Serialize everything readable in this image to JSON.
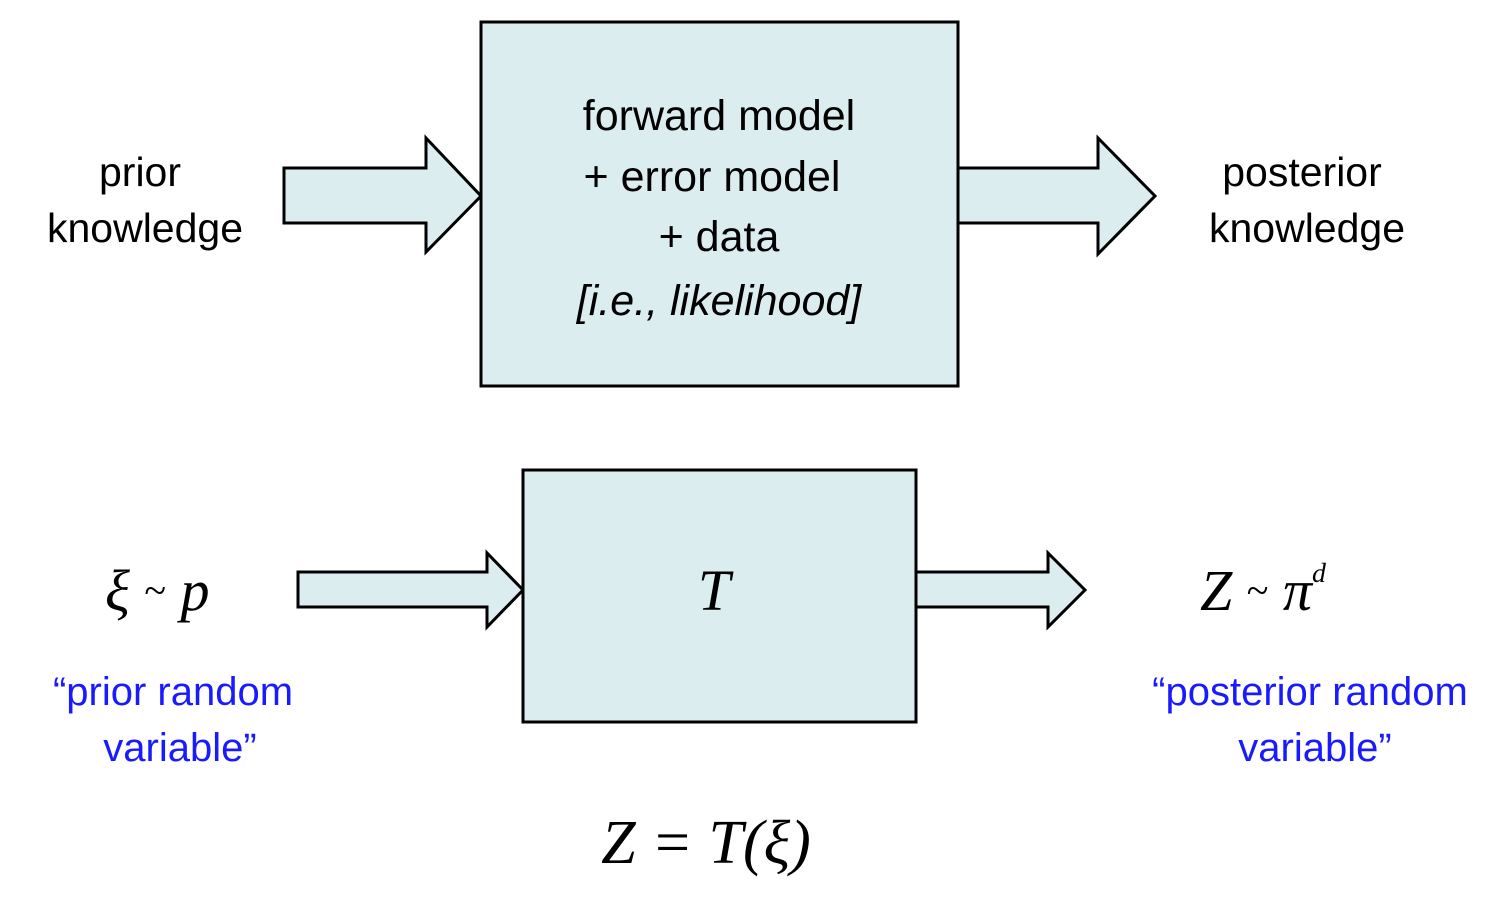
{
  "top_row": {
    "left_label_line1": "prior",
    "left_label_line2": "knowledge",
    "box_line1": "forward model",
    "box_line2": "+ error model",
    "box_line3": "+ data",
    "box_line4": "[i.e., likelihood]",
    "right_label_line1": "posterior",
    "right_label_line2": "knowledge"
  },
  "bottom_row": {
    "left_math_var": "ξ",
    "left_math_rel": "~",
    "left_math_dist": "p",
    "left_caption_line1": "“prior random",
    "left_caption_line2": "variable”",
    "box_label": "T",
    "right_math_var": "Z",
    "right_math_rel": "~",
    "right_math_dist": "π",
    "right_math_sup": "d",
    "right_caption_line1": "“posterior random",
    "right_caption_line2": "variable”",
    "equation": "Z = T(ξ)"
  },
  "colors": {
    "box_fill": "#dcedf0",
    "stroke": "#000000",
    "caption_blue": "#1a1aff"
  }
}
